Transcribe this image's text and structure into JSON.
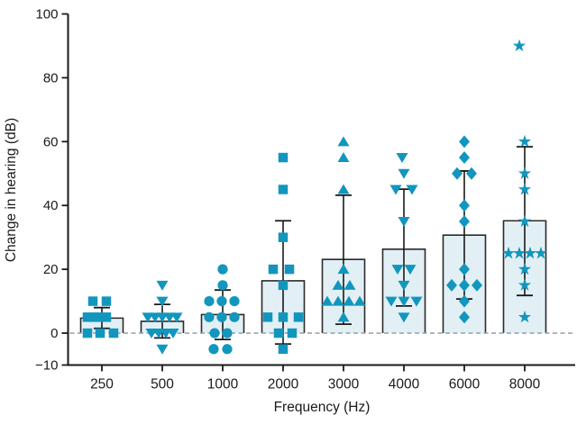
{
  "figure": {
    "background": "#ffffff"
  },
  "chart_data": {
    "type": "bar",
    "subtype": "bar-with-scatter-overlay-and-error-bars",
    "title": "",
    "xlabel": "Frequency (Hz)",
    "ylabel": "Change in hearing (dB)",
    "categories": [
      "250",
      "500",
      "1000",
      "2000",
      "3000",
      "4000",
      "6000",
      "8000"
    ],
    "ylim": [
      -10,
      100
    ],
    "y_ticks": [
      -10,
      0,
      20,
      40,
      60,
      80,
      100
    ],
    "y_tick_labels": [
      "−10",
      "0",
      "20",
      "40",
      "60",
      "80",
      "100"
    ],
    "grid": false,
    "legend": "none",
    "zero_line": {
      "value": 0,
      "style": "dashed"
    },
    "series": [
      {
        "name": "bar-mean",
        "values": [
          4.7,
          3.7,
          5.8,
          16.4,
          23.1,
          26.3,
          30.7,
          35.2
        ]
      },
      {
        "name": "error-low",
        "values": [
          1.5,
          -1.5,
          -2.0,
          -3.4,
          2.8,
          8.5,
          10.7,
          11.8
        ]
      },
      {
        "name": "error-high",
        "values": [
          8.0,
          9.0,
          13.5,
          35.2,
          43.2,
          45.1,
          50.8,
          58.4
        ]
      }
    ],
    "marker_shapes": [
      "square",
      "triangle-down",
      "circle",
      "square",
      "triangle-up",
      "triangle-down",
      "diamond",
      "star"
    ],
    "points": {
      "250": [
        [
          10,
          -10
        ],
        [
          10,
          5
        ],
        [
          5,
          -16
        ],
        [
          5,
          -9
        ],
        [
          5,
          -2
        ],
        [
          5,
          5
        ],
        [
          0,
          -16
        ],
        [
          0,
          -2
        ],
        [
          0,
          13
        ]
      ],
      "500": [
        [
          15,
          0
        ],
        [
          10,
          0
        ],
        [
          5,
          -16
        ],
        [
          5,
          -8
        ],
        [
          5,
          0
        ],
        [
          5,
          8
        ],
        [
          5,
          16
        ],
        [
          0,
          -12
        ],
        [
          0,
          -4
        ],
        [
          0,
          4
        ],
        [
          0,
          12
        ],
        [
          -5,
          0
        ]
      ],
      "1000": [
        [
          20,
          0
        ],
        [
          15,
          0
        ],
        [
          10,
          -15
        ],
        [
          10,
          -1
        ],
        [
          10,
          13
        ],
        [
          5,
          -15
        ],
        [
          5,
          -1
        ],
        [
          5,
          13
        ],
        [
          0,
          -9
        ],
        [
          0,
          5
        ],
        [
          -5,
          -10
        ],
        [
          -5,
          5
        ]
      ],
      "2000": [
        [
          55,
          0
        ],
        [
          45,
          0
        ],
        [
          30,
          0
        ],
        [
          20,
          -11
        ],
        [
          20,
          7
        ],
        [
          15,
          0
        ],
        [
          5,
          -17
        ],
        [
          5,
          0
        ],
        [
          5,
          17
        ],
        [
          0,
          -5
        ],
        [
          0,
          10
        ],
        [
          -5,
          0
        ]
      ],
      "3000": [
        [
          60,
          0
        ],
        [
          55,
          0
        ],
        [
          45,
          0
        ],
        [
          20,
          0
        ],
        [
          15,
          -6
        ],
        [
          15,
          7
        ],
        [
          10,
          -18
        ],
        [
          10,
          -6
        ],
        [
          10,
          6
        ],
        [
          10,
          18
        ],
        [
          5,
          0
        ]
      ],
      "4000": [
        [
          55,
          -2
        ],
        [
          50,
          0
        ],
        [
          45,
          -9
        ],
        [
          45,
          9
        ],
        [
          35,
          0
        ],
        [
          20,
          -7
        ],
        [
          20,
          7
        ],
        [
          15,
          0
        ],
        [
          10,
          -14
        ],
        [
          10,
          0
        ],
        [
          10,
          14
        ],
        [
          5,
          0
        ]
      ],
      "6000": [
        [
          60,
          0
        ],
        [
          55,
          0
        ],
        [
          50,
          -8
        ],
        [
          50,
          8
        ],
        [
          40,
          0
        ],
        [
          35,
          0
        ],
        [
          20,
          0
        ],
        [
          15,
          -14
        ],
        [
          15,
          0
        ],
        [
          15,
          14
        ],
        [
          10,
          0
        ],
        [
          5,
          0
        ]
      ],
      "8000": [
        [
          90,
          -6
        ],
        [
          60,
          0
        ],
        [
          50,
          0
        ],
        [
          45,
          0
        ],
        [
          35,
          0
        ],
        [
          25,
          -18
        ],
        [
          25,
          -6
        ],
        [
          25,
          6
        ],
        [
          25,
          18
        ],
        [
          20,
          0
        ],
        [
          15,
          0
        ],
        [
          5,
          0
        ]
      ]
    },
    "colors": {
      "marker": "#1296BE",
      "bar_fill": "#E2F0F6",
      "bar_border": "#2B2B2B",
      "error_bar": "#1A1A1A",
      "axis": "#1A1A1A",
      "zero_dash": "#9AA7AD",
      "text": "#1A1A1A"
    }
  }
}
